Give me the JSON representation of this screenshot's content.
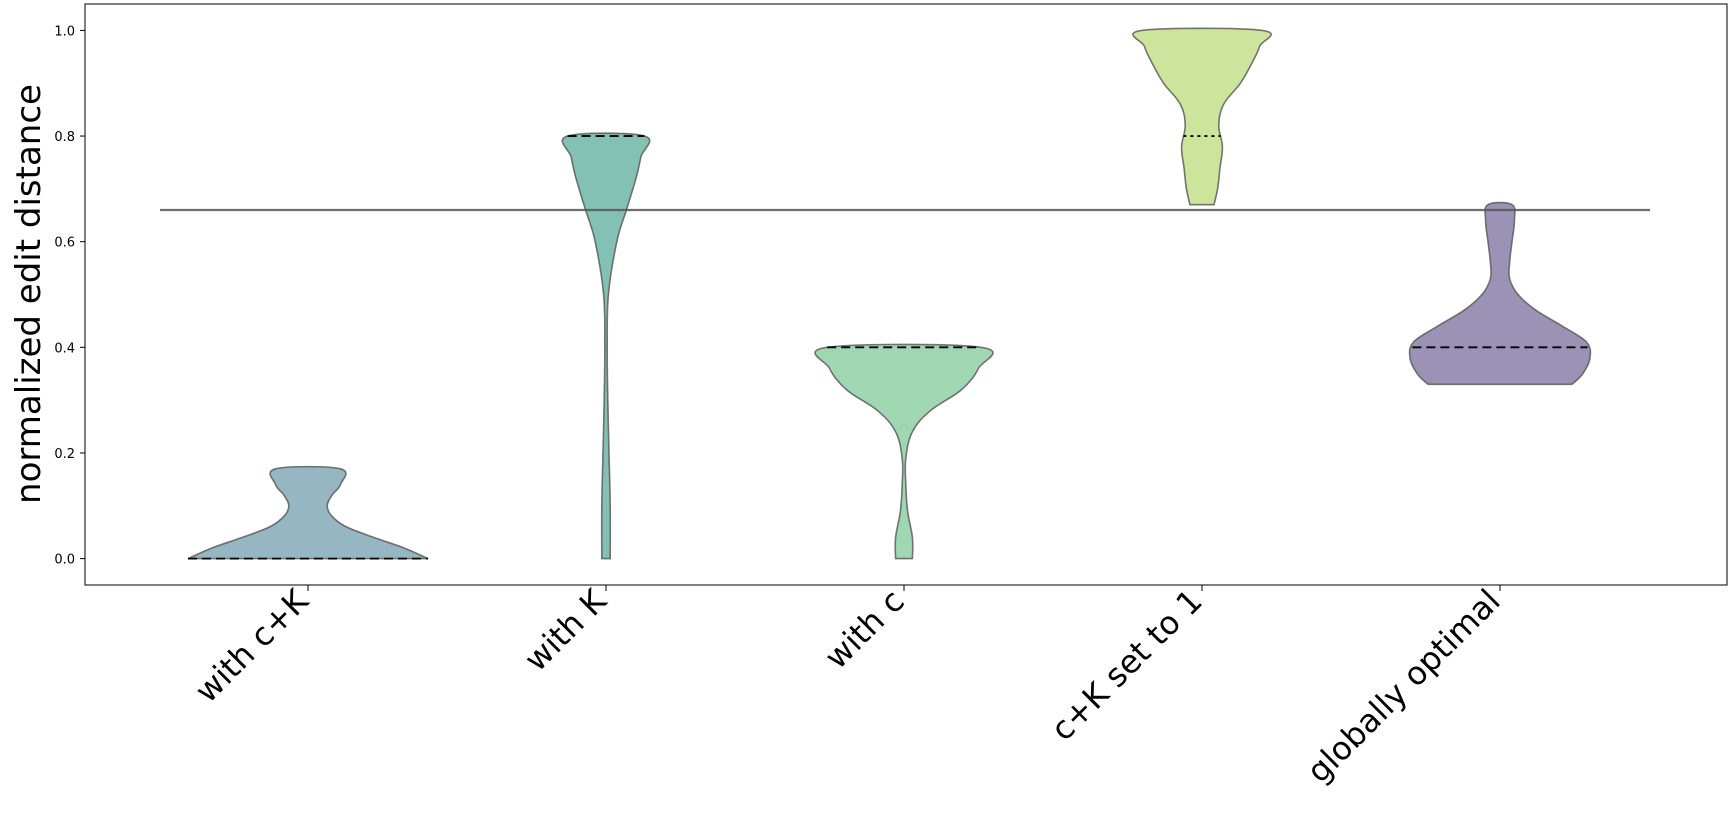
{
  "chart_data": {
    "type": "violin",
    "ylabel": "normalized edit distance",
    "xlabel": "",
    "ylim": [
      -0.05,
      1.05
    ],
    "yticks": [
      "0.0",
      "0.2",
      "0.4",
      "0.6",
      "0.8",
      "1.0"
    ],
    "ytick_values": [
      0.0,
      0.2,
      0.4,
      0.6,
      0.8,
      1.0
    ],
    "grid": false,
    "reference_line": {
      "y": 0.66,
      "color": "#555555"
    },
    "categories": [
      "with c+K",
      "with K",
      "with c",
      "c+K set to 1",
      "globally optimal"
    ],
    "violins": [
      {
        "name": "with c+K",
        "color": "#5d8fa0",
        "min": 0.0,
        "max": 0.17,
        "median": 0.0,
        "median_style": "dashed",
        "profile": [
          [
            0.0,
            1.0
          ],
          [
            0.02,
            0.8
          ],
          [
            0.04,
            0.55
          ],
          [
            0.06,
            0.32
          ],
          [
            0.08,
            0.2
          ],
          [
            0.1,
            0.16
          ],
          [
            0.12,
            0.2
          ],
          [
            0.14,
            0.27
          ],
          [
            0.17,
            0.27
          ]
        ]
      },
      {
        "name": "with K",
        "color": "#3fa08c",
        "min": 0.0,
        "max": 0.8,
        "median": 0.8,
        "median_style": "dashed",
        "profile": [
          [
            0.0,
            0.035
          ],
          [
            0.1,
            0.035
          ],
          [
            0.2,
            0.025
          ],
          [
            0.3,
            0.015
          ],
          [
            0.4,
            0.01
          ],
          [
            0.5,
            0.02
          ],
          [
            0.6,
            0.09
          ],
          [
            0.66,
            0.17
          ],
          [
            0.72,
            0.25
          ],
          [
            0.76,
            0.29
          ],
          [
            0.8,
            0.32
          ]
        ]
      },
      {
        "name": "with c",
        "color": "#6cc18a",
        "min": 0.0,
        "max": 0.4,
        "median": 0.4,
        "median_style": "dashed",
        "profile": [
          [
            0.0,
            0.07
          ],
          [
            0.04,
            0.07
          ],
          [
            0.09,
            0.03
          ],
          [
            0.14,
            0.015
          ],
          [
            0.19,
            0.015
          ],
          [
            0.24,
            0.07
          ],
          [
            0.28,
            0.22
          ],
          [
            0.32,
            0.48
          ],
          [
            0.36,
            0.62
          ],
          [
            0.4,
            0.64
          ]
        ]
      },
      {
        "name": "c+K set to 1",
        "color": "#b0d666",
        "min": 0.67,
        "max": 1.0,
        "median": 0.8,
        "median_style": "dotted",
        "profile": [
          [
            0.67,
            0.1
          ],
          [
            0.7,
            0.13
          ],
          [
            0.74,
            0.15
          ],
          [
            0.78,
            0.17
          ],
          [
            0.82,
            0.14
          ],
          [
            0.86,
            0.18
          ],
          [
            0.9,
            0.32
          ],
          [
            0.94,
            0.42
          ],
          [
            0.97,
            0.48
          ],
          [
            1.0,
            0.5
          ]
        ]
      },
      {
        "name": "globally optimal",
        "color": "#65588f",
        "min": 0.33,
        "max": 0.67,
        "median": 0.4,
        "median_style": "dashed",
        "profile": [
          [
            0.33,
            0.6
          ],
          [
            0.35,
            0.69
          ],
          [
            0.38,
            0.75
          ],
          [
            0.41,
            0.72
          ],
          [
            0.44,
            0.52
          ],
          [
            0.47,
            0.3
          ],
          [
            0.5,
            0.15
          ],
          [
            0.53,
            0.08
          ],
          [
            0.56,
            0.08
          ],
          [
            0.6,
            0.1
          ],
          [
            0.64,
            0.12
          ],
          [
            0.67,
            0.1
          ]
        ]
      }
    ]
  }
}
